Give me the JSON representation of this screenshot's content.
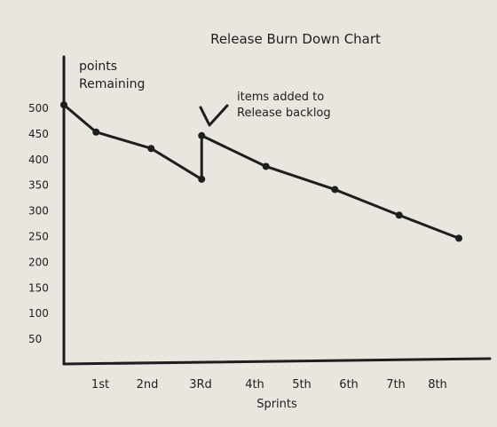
{
  "chart_data": {
    "type": "line",
    "title": "Release Burn Down Chart",
    "xlabel": "Sprints",
    "ylabel": "points Remaining",
    "y_ticks": [
      500,
      450,
      400,
      350,
      300,
      250,
      200,
      150,
      100,
      50
    ],
    "ylim": [
      0,
      500
    ],
    "x_ticks": [
      "1st",
      "2nd",
      "3Rd",
      "4th",
      "5th",
      "6th",
      "7th",
      "8th"
    ],
    "xlim": [
      0,
      8.6
    ],
    "grid": false,
    "series": [
      {
        "x": [
          0,
          0.7,
          1.9,
          3,
          3,
          4.4,
          5.9,
          7.3,
          8.6
        ],
        "y": [
          505,
          452,
          420,
          360,
          445,
          385,
          340,
          290,
          245
        ],
        "color": "#1e1e1e"
      }
    ],
    "annotations": [
      {
        "text": "items added to Release backlog",
        "target_x": 3,
        "target_y": 445
      }
    ]
  }
}
